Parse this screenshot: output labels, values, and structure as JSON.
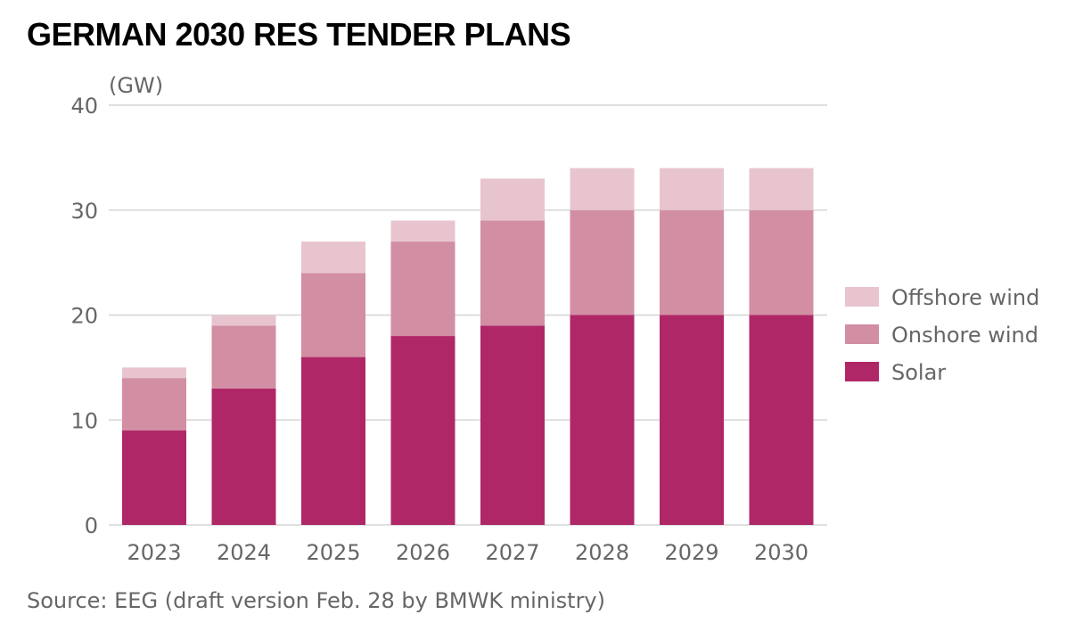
{
  "title": "GERMAN 2030 RES TENDER PLANS",
  "source": "Source: EEG (draft version Feb. 28 by BMWK ministry)",
  "chart_data": {
    "type": "bar",
    "stacked": true,
    "title": "GERMAN 2030 RES TENDER PLANS",
    "ylabel": "(GW)",
    "xlabel": "",
    "ylim": [
      0,
      40
    ],
    "yticks": [
      0,
      10,
      20,
      30,
      40
    ],
    "grid": true,
    "legend_position": "right",
    "categories": [
      "2023",
      "2024",
      "2025",
      "2026",
      "2027",
      "2028",
      "2029",
      "2030"
    ],
    "series": [
      {
        "name": "Solar",
        "color": "#b02767",
        "values": [
          9,
          13,
          16,
          18,
          19,
          20,
          20,
          20
        ]
      },
      {
        "name": "Onshore wind",
        "color": "#d28ea3",
        "values": [
          5,
          6,
          8,
          9,
          10,
          10,
          10,
          10
        ]
      },
      {
        "name": "Offshore wind",
        "color": "#e8c4cf",
        "values": [
          1,
          1,
          3,
          2,
          4,
          4,
          4,
          4
        ]
      }
    ],
    "legend_order": [
      "Offshore wind",
      "Onshore wind",
      "Solar"
    ]
  }
}
